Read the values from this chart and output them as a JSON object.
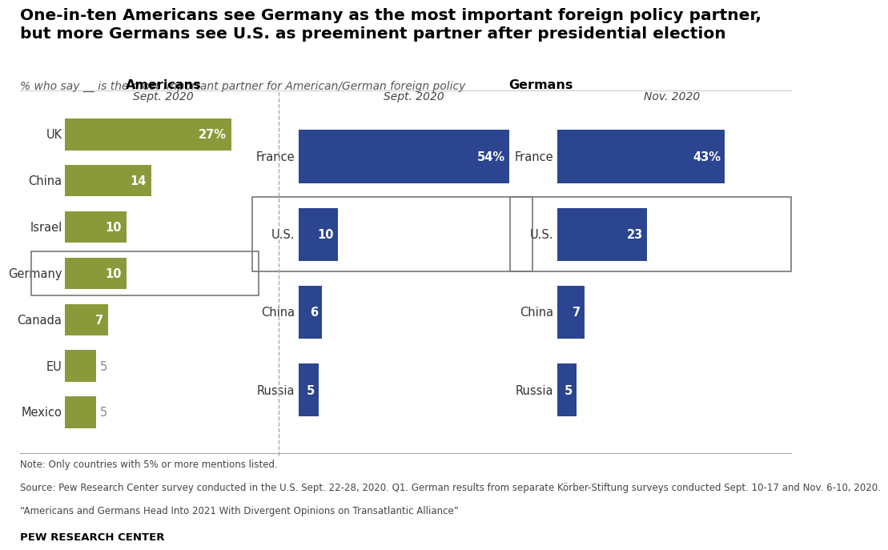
{
  "title": "One-in-ten Americans see Germany as the most important foreign policy partner,\nbut more Germans see U.S. as preeminent partner after presidential election",
  "subtitle": "% who say __ is the most important partner for American/German foreign policy",
  "americans_label": "Americans",
  "americans_period": "Sept. 2020",
  "germans_label": "Germans",
  "german_sept_period": "Sept. 2020",
  "german_nov_period": "Nov. 2020",
  "americans": {
    "categories": [
      "UK",
      "China",
      "Israel",
      "Germany",
      "Canada",
      "EU",
      "Mexico"
    ],
    "values": [
      27,
      14,
      10,
      10,
      7,
      5,
      5
    ],
    "highlight": "Germany",
    "color": "#8a9a3a",
    "pct_labels": [
      "27%",
      "14",
      "10",
      "10",
      "7",
      "5",
      "5"
    ],
    "label_inside": [
      true,
      true,
      true,
      true,
      true,
      false,
      false
    ]
  },
  "german_sept": {
    "categories": [
      "France",
      "U.S.",
      "China",
      "Russia"
    ],
    "values": [
      54,
      10,
      6,
      5
    ],
    "highlight": "U.S.",
    "color": "#2b4590",
    "pct_labels": [
      "54%",
      "10",
      "6",
      "5"
    ],
    "label_inside": [
      true,
      true,
      true,
      true
    ]
  },
  "german_nov": {
    "categories": [
      "France",
      "U.S.",
      "China",
      "Russia"
    ],
    "values": [
      43,
      23,
      7,
      5
    ],
    "highlight": "U.S.",
    "color": "#2b4590",
    "pct_labels": [
      "43%",
      "23",
      "7",
      "5"
    ],
    "label_inside": [
      true,
      true,
      true,
      true
    ]
  },
  "note_lines": [
    "Note: Only countries with 5% or more mentions listed.",
    "Source: Pew Research Center survey conducted in the U.S. Sept. 22-28, 2020. Q1. German results from separate Körber-Stiftung surveys conducted Sept. 10-17 and Nov. 6-10, 2020.",
    "“Americans and Germans Head Into 2021 With Divergent Opinions on Transatlantic Alliance”"
  ],
  "source_label": "PEW RESEARCH CENTER",
  "bg_color": "#ffffff"
}
